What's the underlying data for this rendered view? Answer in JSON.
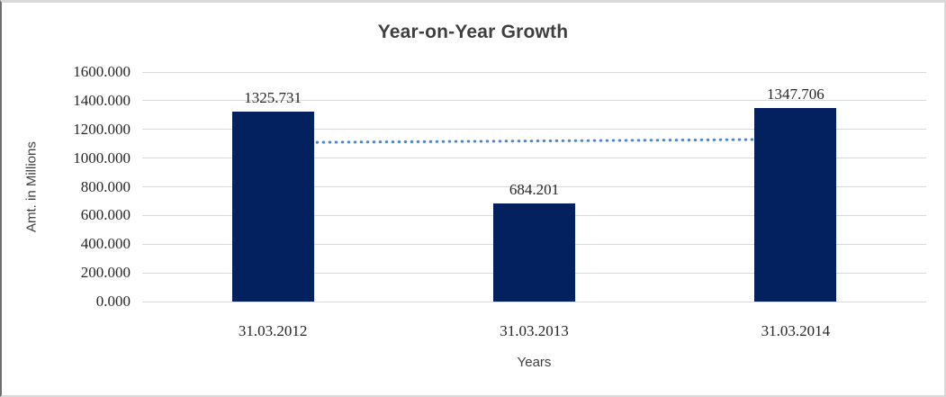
{
  "chart_data": {
    "type": "bar",
    "title": "Year-on-Year Growth",
    "xlabel": "Years",
    "ylabel": "Amt. in Millions",
    "categories": [
      "31.03.2012",
      "31.03.2013",
      "31.03.2014"
    ],
    "values": [
      1325.731,
      684.201,
      1347.706
    ],
    "value_labels": [
      "1325.731",
      "684.201",
      "1347.706"
    ],
    "ylim": [
      0,
      1600
    ],
    "ytick_step": 200,
    "ytick_labels": [
      "0.000",
      "200.000",
      "400.000",
      "600.000",
      "800.000",
      "1000.000",
      "1200.000",
      "1400.000",
      "1600.000"
    ],
    "grid": true,
    "legend": false,
    "bar_color": "#02215E",
    "trendline": {
      "style": "dotted",
      "color": "#4E87C9",
      "start_value": 1108,
      "end_value": 1131
    }
  },
  "colors": {
    "gridline": "#d9d9d9",
    "tick_text": "#262626",
    "title_text": "#3f3f3f",
    "axis_title_text": "#404040",
    "frame_border": "#d9d9d9"
  }
}
